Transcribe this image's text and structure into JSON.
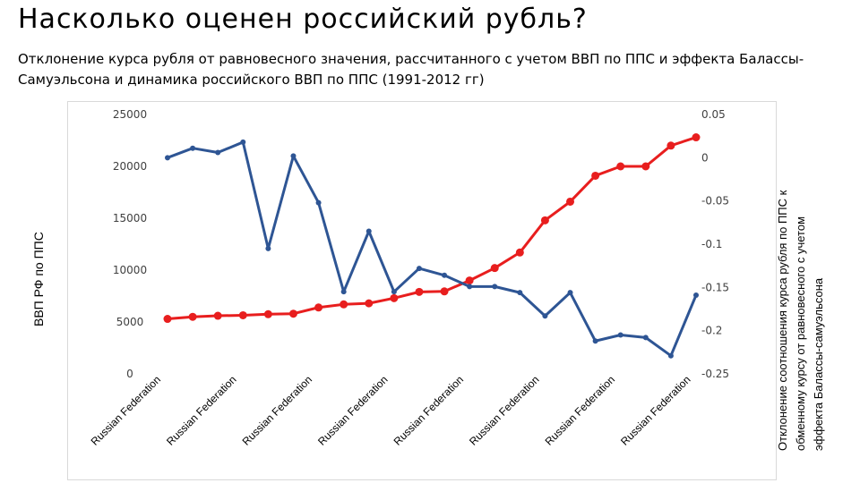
{
  "header": {
    "title": "Насколько оценен российский рубль?",
    "subtitle": "Отклонение курса рубля от равновесного значения, рассчитанного с учетом ВВП по ППС и эффекта Балассы- Самуэльсона и динамика российского ВВП по ППС (1991-2012 гг)"
  },
  "chart_data": {
    "type": "line",
    "x": [
      "Russian Federation",
      "Russian Federation",
      "Russian Federation",
      "Russian Federation",
      "Russian Federation",
      "Russian Federation",
      "Russian Federation",
      "Russian Federation",
      "Russian Federation",
      "Russian Federation",
      "Russian Federation",
      "Russian Federation",
      "Russian Federation",
      "Russian Federation",
      "Russian Federation",
      "Russian Federation",
      "Russian Federation",
      "Russian Federation",
      "Russian Federation",
      "Russian Federation",
      "Russian Federation",
      "Russian Federation"
    ],
    "x_tick_labels": [
      "Russian Federation",
      "Russian Federation",
      "Russian Federation",
      "Russian Federation",
      "Russian Federation",
      "Russian Federation",
      "Russian Federation",
      "Russian Federation"
    ],
    "series": [
      {
        "axis": "left",
        "color": "#e81e1e",
        "values": [
          5300,
          5500,
          5600,
          5650,
          5750,
          5800,
          6400,
          6700,
          6800,
          7300,
          7900,
          7950,
          9000,
          10200,
          11700,
          14800,
          16600,
          19100,
          20000,
          20000,
          22000,
          22800
        ]
      },
      {
        "axis": "right",
        "color": "#2e5594",
        "values": [
          0.0,
          0.011,
          0.006,
          0.018,
          -0.105,
          0.002,
          -0.052,
          -0.155,
          -0.085,
          -0.155,
          -0.128,
          -0.136,
          -0.149,
          -0.149,
          -0.156,
          -0.183,
          -0.156,
          -0.212,
          -0.205,
          -0.208,
          -0.229,
          -0.159
        ]
      }
    ],
    "ylabel": "ВВП РФ по ППС",
    "y2label": "Отклонение соотношения курса рубля по ППС к обменному курсу от равновесного с учетом эффекта Балассы-самуэльсона",
    "ylim": [
      0,
      25000
    ],
    "y2lim": [
      -0.25,
      0.05
    ],
    "yticks": [
      "0",
      "5000",
      "10000",
      "15000",
      "20000",
      "25000"
    ],
    "y2ticks": [
      "-0.25",
      "-0.2",
      "-0.15",
      "-0.1",
      "-0.05",
      "0",
      "0.05"
    ],
    "grid": false,
    "legend": "none"
  }
}
